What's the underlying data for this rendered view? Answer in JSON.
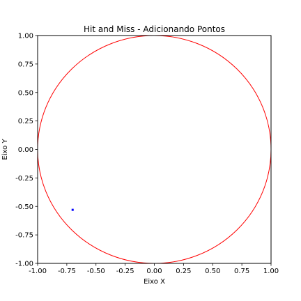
{
  "chart_data": {
    "type": "scatter",
    "title": "Hit and Miss - Adicionando Pontos",
    "xlabel": "Eixo X",
    "ylabel": "Eixo Y",
    "xlim": [
      -1.0,
      1.0
    ],
    "ylim": [
      -1.0,
      1.0
    ],
    "grid": false,
    "x_ticks": [
      "-1.00",
      "-0.75",
      "-0.50",
      "-0.25",
      "0.00",
      "0.25",
      "0.50",
      "0.75",
      "1.00"
    ],
    "y_ticks": [
      "-1.00",
      "-0.75",
      "-0.50",
      "-0.25",
      "0.00",
      "0.25",
      "0.50",
      "0.75",
      "1.00"
    ],
    "circle": {
      "center": [
        0.0,
        0.0
      ],
      "radius": 1.0,
      "color": "#ff0000"
    },
    "points": [
      {
        "x": -0.7,
        "y": -0.53,
        "color": "#0000ff"
      }
    ]
  }
}
